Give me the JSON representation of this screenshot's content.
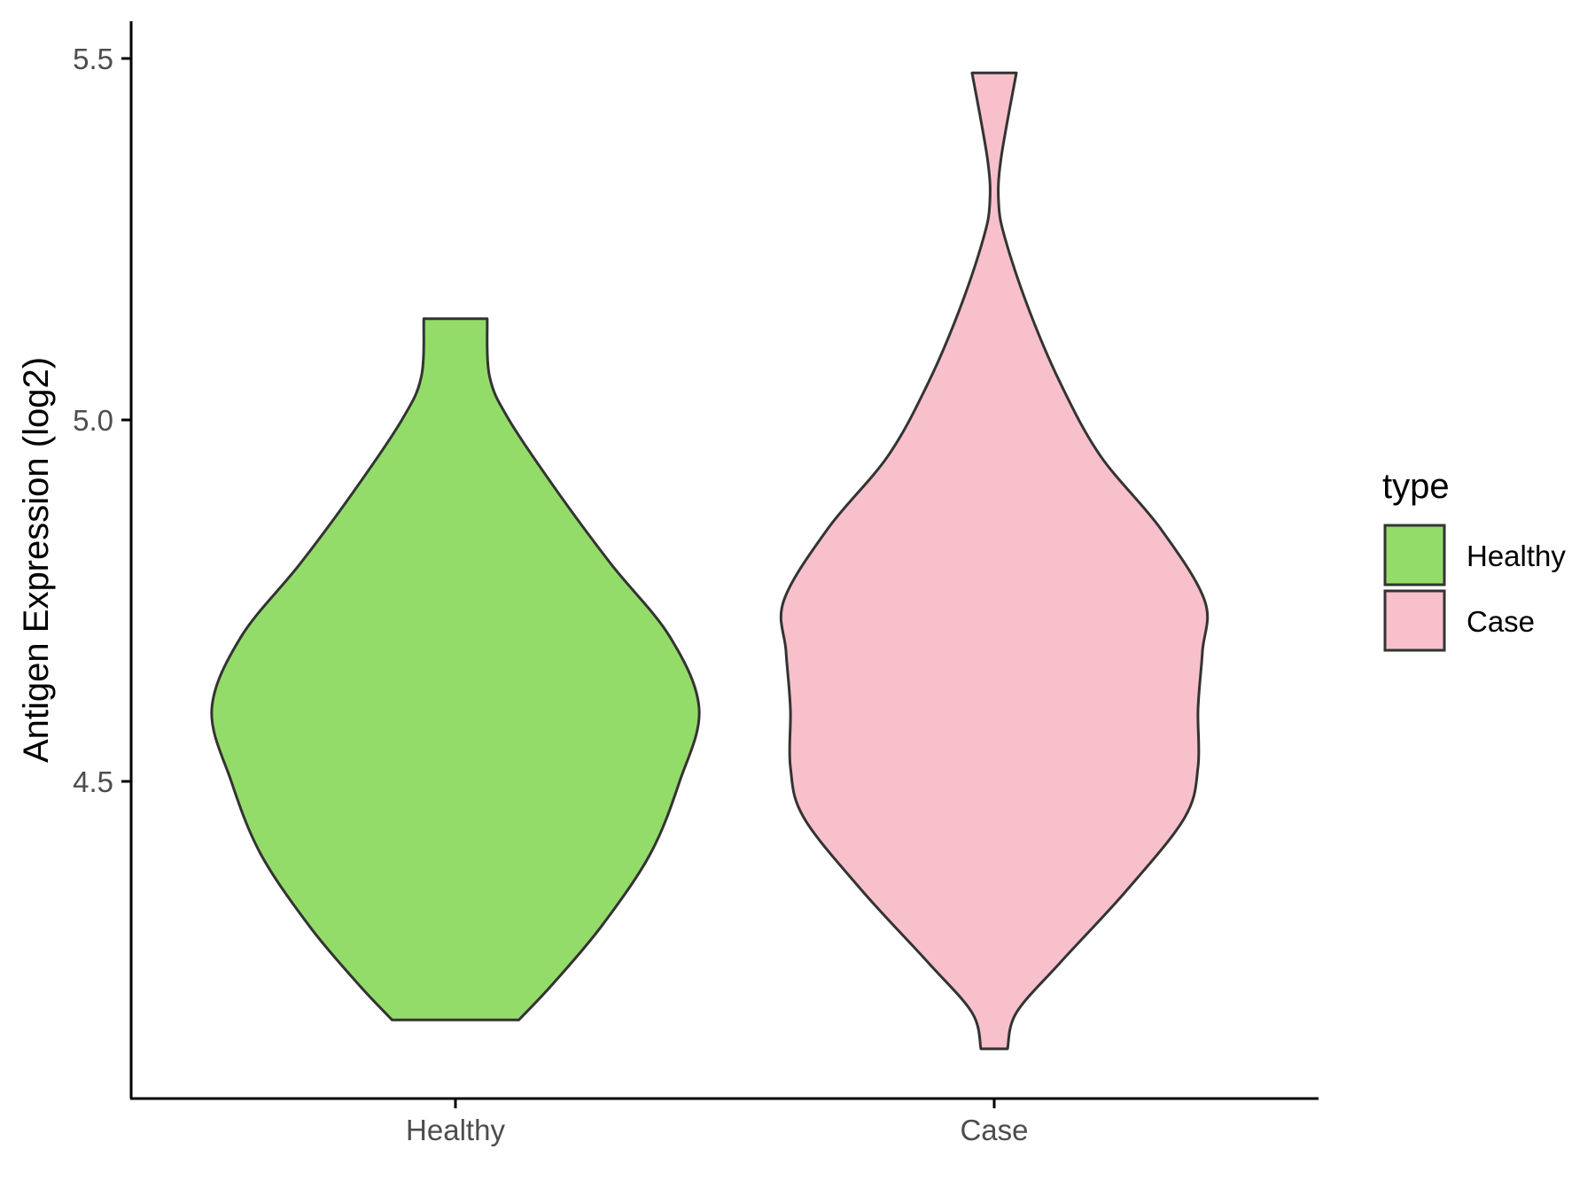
{
  "chart_data": {
    "type": "violin",
    "title": "",
    "xlabel": "",
    "ylabel": "Antigen Expression (log2)",
    "categories": [
      "Healthy",
      "Case"
    ],
    "y_ticks": [
      "4.5",
      "5.0",
      "5.5"
    ],
    "y_tick_values": [
      4.5,
      5.0,
      5.5
    ],
    "ylim": [
      4.05,
      5.55
    ],
    "legend": {
      "title": "type",
      "placement": "right",
      "entries": [
        {
          "label": "Healthy",
          "color": "#93DC6A"
        },
        {
          "label": "Case",
          "color": "#F7C0CB"
        }
      ]
    },
    "series": [
      {
        "category": "Healthy",
        "color": "#93DC6A",
        "min": 4.17,
        "max": 5.14,
        "density_profile": [
          [
            4.17,
            0.26
          ],
          [
            4.22,
            0.4
          ],
          [
            4.3,
            0.6
          ],
          [
            4.4,
            0.8
          ],
          [
            4.5,
            0.92
          ],
          [
            4.6,
            1.0
          ],
          [
            4.7,
            0.88
          ],
          [
            4.8,
            0.64
          ],
          [
            4.9,
            0.42
          ],
          [
            5.0,
            0.22
          ],
          [
            5.06,
            0.14
          ],
          [
            5.14,
            0.13
          ]
        ]
      },
      {
        "category": "Case",
        "color": "#F7C0CB",
        "min": 4.13,
        "max": 5.48,
        "density_profile": [
          [
            4.13,
            0.06
          ],
          [
            4.18,
            0.1
          ],
          [
            4.25,
            0.3
          ],
          [
            4.35,
            0.6
          ],
          [
            4.45,
            0.86
          ],
          [
            4.52,
            0.92
          ],
          [
            4.6,
            0.92
          ],
          [
            4.68,
            0.94
          ],
          [
            4.75,
            0.95
          ],
          [
            4.85,
            0.75
          ],
          [
            4.95,
            0.48
          ],
          [
            5.05,
            0.3
          ],
          [
            5.15,
            0.16
          ],
          [
            5.25,
            0.05
          ],
          [
            5.3,
            0.02
          ],
          [
            5.36,
            0.03
          ],
          [
            5.48,
            0.1
          ]
        ]
      }
    ],
    "grid": false
  }
}
